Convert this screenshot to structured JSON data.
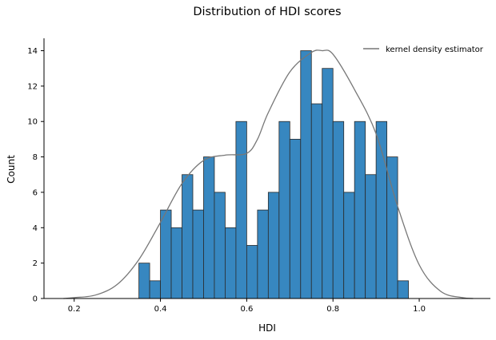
{
  "chart_data": {
    "type": "bar",
    "title": "Distribution of HDI scores",
    "xlabel": "HDI",
    "ylabel": "Count",
    "xlim": [
      0.13,
      1.165
    ],
    "ylim": [
      0,
      14.7
    ],
    "xticks": [
      "0.2",
      "0.4",
      "0.6",
      "0.8",
      "1.0"
    ],
    "xtick_values": [
      0.2,
      0.4,
      0.6,
      0.8,
      1.0
    ],
    "yticks": [
      "0",
      "2",
      "4",
      "6",
      "8",
      "10",
      "12",
      "14"
    ],
    "ytick_values": [
      0,
      2,
      4,
      6,
      8,
      10,
      12,
      14
    ],
    "grid": false,
    "legend_position": "top-right",
    "bar_color": "#3787c0",
    "bar_edge_color": "#2b2b2b",
    "histogram": {
      "bin_edges": [
        0.35,
        0.375,
        0.4,
        0.425,
        0.45,
        0.475,
        0.5,
        0.525,
        0.55,
        0.575,
        0.6,
        0.625,
        0.65,
        0.675,
        0.7,
        0.725,
        0.75,
        0.775,
        0.8,
        0.825,
        0.85,
        0.875,
        0.9,
        0.925,
        0.95,
        0.975
      ],
      "counts": [
        2,
        1,
        5,
        4,
        7,
        5,
        8,
        6,
        4,
        10,
        3,
        5,
        6,
        10,
        9,
        14,
        11,
        13,
        10,
        6,
        10,
        7,
        10,
        8,
        1
      ]
    },
    "kde": {
      "name": "kernel density estimator",
      "color": "#777777",
      "x": [
        0.175,
        0.2,
        0.25,
        0.3,
        0.35,
        0.4,
        0.45,
        0.5,
        0.55,
        0.6,
        0.625,
        0.65,
        0.7,
        0.75,
        0.775,
        0.8,
        0.85,
        0.9,
        0.95,
        1.0,
        1.05,
        1.1,
        1.125
      ],
      "y": [
        0.0,
        0.05,
        0.2,
        0.8,
        2.2,
        4.3,
        6.5,
        7.8,
        8.1,
        8.2,
        9.0,
        10.5,
        12.8,
        13.9,
        14.0,
        13.8,
        11.8,
        9.3,
        5.2,
        1.9,
        0.4,
        0.05,
        0.0
      ]
    }
  }
}
